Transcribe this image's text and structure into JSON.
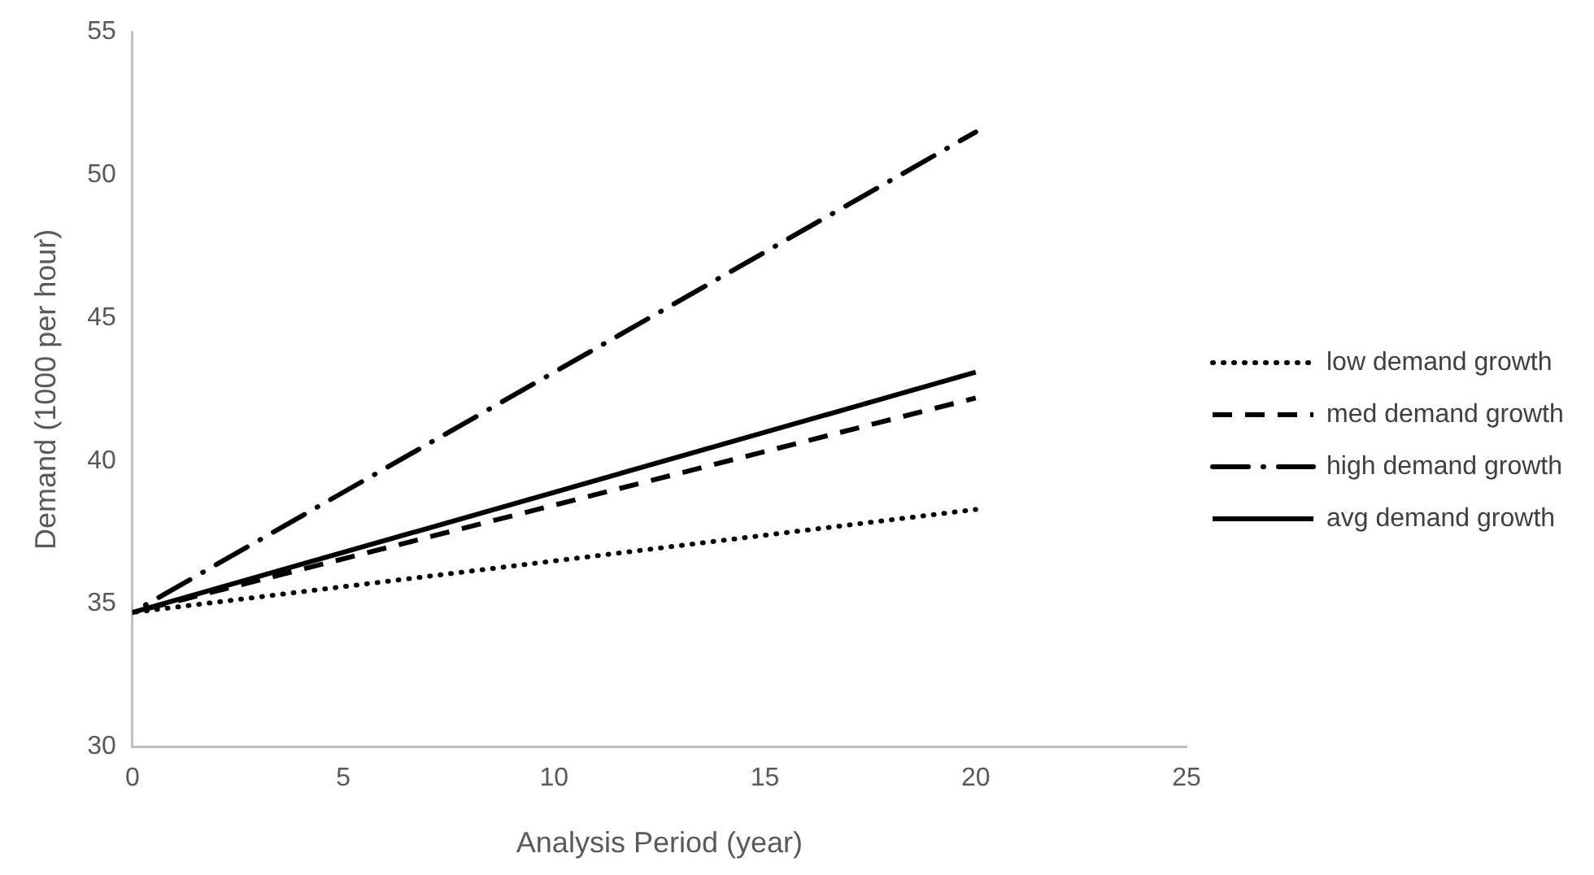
{
  "chart_data": {
    "type": "line",
    "xlabel": "Analysis Period (year)",
    "ylabel": "Demand (1000 per hour)",
    "x": [
      0,
      20
    ],
    "xlim": [
      0,
      25
    ],
    "xticks": [
      0,
      5,
      10,
      15,
      20,
      25
    ],
    "ylim": [
      30,
      55
    ],
    "yticks": [
      30,
      35,
      40,
      45,
      50,
      55
    ],
    "grid": false,
    "legend": "right",
    "marker": "none",
    "series": [
      {
        "name": "low demand growth",
        "color": "#000000",
        "line_style": "dotted",
        "values": [
          34.7,
          38.3
        ]
      },
      {
        "name": "med demand growth",
        "color": "#000000",
        "line_style": "dashed",
        "values": [
          34.7,
          42.2
        ]
      },
      {
        "name": "high demand growth",
        "color": "#000000",
        "line_style": "dashdot",
        "values": [
          34.7,
          51.5
        ]
      },
      {
        "name": "avg demand growth",
        "color": "#000000",
        "line_style": "solid",
        "values": [
          34.7,
          43.1
        ]
      }
    ]
  }
}
